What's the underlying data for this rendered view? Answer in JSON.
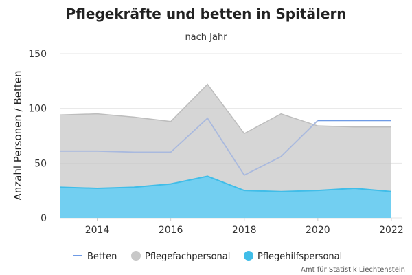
{
  "chart_data": {
    "type": "area",
    "title": "Pflegekräfte und betten in Spitälern",
    "subtitle": "nach Jahr",
    "ylabel": "Anzahl Personen / Betten",
    "xlabel": "",
    "ylim": [
      0,
      150
    ],
    "xlim": [
      2013,
      2022.3
    ],
    "y_ticks": [
      0,
      50,
      100,
      150
    ],
    "x_ticks": [
      2014,
      2016,
      2018,
      2020,
      2022
    ],
    "x": [
      2013,
      2014,
      2015,
      2016,
      2017,
      2018,
      2019,
      2020,
      2021,
      2022
    ],
    "grid": true,
    "legend_position": "bottom",
    "series": [
      {
        "name": "Betten",
        "kind": "line",
        "color": "#6f9be6",
        "values": [
          null,
          null,
          null,
          null,
          null,
          null,
          null,
          89,
          89,
          89
        ]
      },
      {
        "name": "Pflegefachpersonal",
        "kind": "stacked-area",
        "color": "#c8c8c8",
        "values": [
          66,
          68,
          64,
          57,
          84,
          52,
          71,
          59,
          56,
          59
        ]
      },
      {
        "name": "Pflegehilfspersonal",
        "kind": "area",
        "color": "#40bde8",
        "values": [
          28,
          27,
          28,
          31,
          38,
          25,
          24,
          25,
          27,
          24
        ]
      }
    ],
    "auxiliary_line": {
      "values": [
        61,
        61,
        60,
        60,
        91,
        39,
        56,
        89,
        89,
        89
      ]
    }
  },
  "credit": "Amt für Statistik Liechtenstein"
}
